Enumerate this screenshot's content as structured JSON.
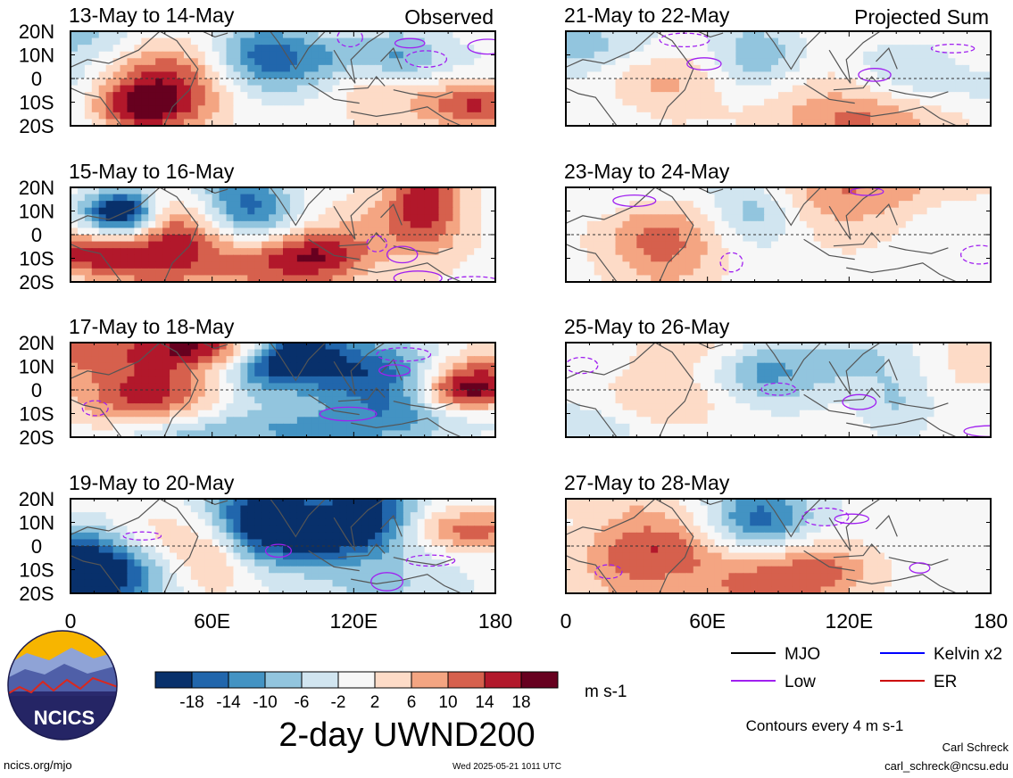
{
  "panels": [
    {
      "date": "13-May to 14-May",
      "tag": "Observed",
      "column": "left",
      "row": 0,
      "seed": 1
    },
    {
      "date": "15-May to 16-May",
      "tag": "",
      "column": "left",
      "row": 1,
      "seed": 2
    },
    {
      "date": "17-May to 18-May",
      "tag": "",
      "column": "left",
      "row": 2,
      "seed": 3
    },
    {
      "date": "19-May to 20-May",
      "tag": "",
      "column": "left",
      "row": 3,
      "seed": 4
    },
    {
      "date": "21-May to 22-May",
      "tag": "Projected Sum",
      "column": "right",
      "row": 0,
      "seed": 5
    },
    {
      "date": "23-May to 24-May",
      "tag": "",
      "column": "right",
      "row": 1,
      "seed": 6
    },
    {
      "date": "25-May to 26-May",
      "tag": "",
      "column": "right",
      "row": 2,
      "seed": 7
    },
    {
      "date": "27-May to 28-May",
      "tag": "",
      "column": "right",
      "row": 3,
      "seed": 8
    }
  ],
  "lat_labels": [
    "20N",
    "10N",
    "0",
    "10S",
    "20S"
  ],
  "lon_labels": [
    "0",
    "60E",
    "120E",
    "180"
  ],
  "colorbar": {
    "ticks": [
      "-18",
      "-14",
      "-10",
      "-6",
      "-2",
      "2",
      "6",
      "10",
      "14",
      "18"
    ],
    "colors": [
      "#08306b",
      "#2166ac",
      "#4393c3",
      "#92c5de",
      "#d1e5f0",
      "#f7f7f7",
      "#fddbc7",
      "#f4a582",
      "#d6604d",
      "#b2182b",
      "#67001f"
    ],
    "units": "m s-1"
  },
  "title": "2-day UWND200",
  "legend": [
    {
      "label": "MJO",
      "color": "#000000"
    },
    {
      "label": "Kelvin x2",
      "color": "#0000ff"
    },
    {
      "label": "Low",
      "color": "#a020f0"
    },
    {
      "label": "ER",
      "color": "#cc0000"
    }
  ],
  "contour_note": "Contours every 4 m s-1",
  "logo_text": "NCICS",
  "footer": {
    "left": "ncics.org/mjo",
    "center": "Wed 2025-05-21 1011 UTC",
    "author": "Carl Schreck",
    "email": "carl_schreck@ncsu.edu"
  }
}
